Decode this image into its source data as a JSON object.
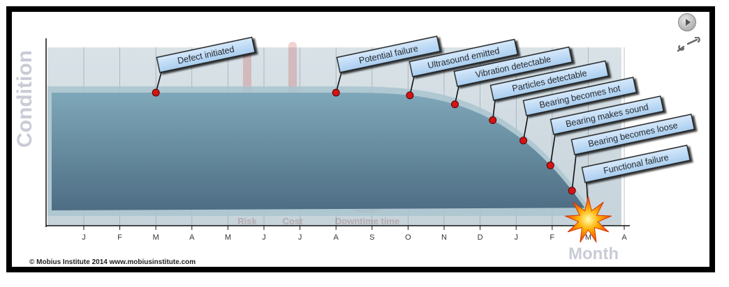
{
  "y_axis_label": "Condition",
  "x_axis_label": "Month",
  "months": [
    "J",
    "F",
    "M",
    "A",
    "M",
    "J",
    "J",
    "A",
    "S",
    "O",
    "N",
    "D",
    "J",
    "F",
    "M",
    "A"
  ],
  "watermarks": {
    "risk": "Risk",
    "cost": "Cost",
    "downtime": "Downtime time"
  },
  "events": [
    {
      "label": "Defect initiated",
      "month_index": 2
    },
    {
      "label": "Potential failure",
      "month_index": 7
    },
    {
      "label": "Ultrasound emitted",
      "month_index": 9.05
    },
    {
      "label": "Vibration detectable",
      "month_index": 10.3
    },
    {
      "label": "Particles detectable",
      "month_index": 11.35
    },
    {
      "label": "Bearing becomes hot",
      "month_index": 12.2
    },
    {
      "label": "Bearing makes sound",
      "month_index": 12.95
    },
    {
      "label": "Bearing becomes loose",
      "month_index": 13.55
    },
    {
      "label": "Functional failure",
      "month_index": 14.0
    }
  ],
  "footer": "© Mobius Institute 2014  www.mobiusinstitute.com",
  "colors": {
    "curve_fill": "#5e8597",
    "label_fill": "#bcdaf5",
    "marker": "#d41414",
    "axis_text": "#333333",
    "axis_title": "#c9ccd6"
  },
  "icons": {
    "play": "play-icon",
    "tools": "wrench-icon"
  }
}
